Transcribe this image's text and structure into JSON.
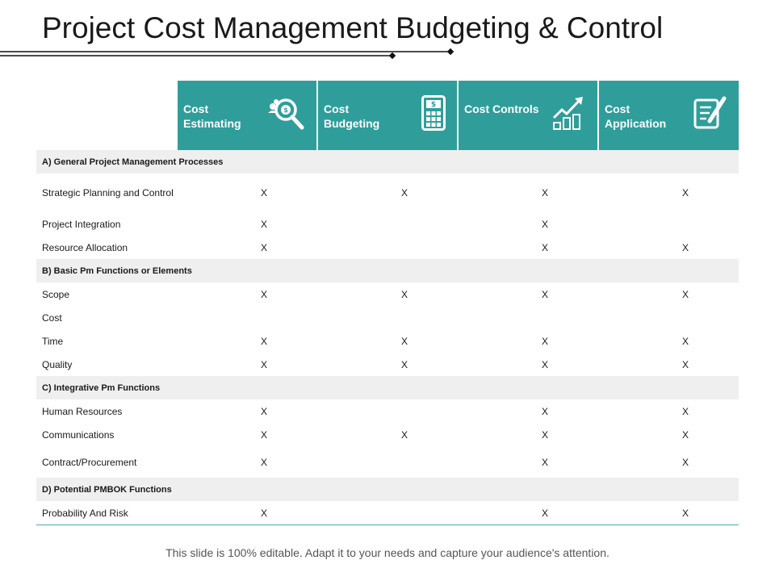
{
  "title": "Project Cost Management Budgeting & Control",
  "colors": {
    "accent": "#2f9e9b",
    "section_bg": "#efefef",
    "rule": "#4aa8a5"
  },
  "columns": [
    {
      "label": "Cost Estimating",
      "icon": "money-search-icon"
    },
    {
      "label": "Cost Budgeting",
      "icon": "calculator-icon"
    },
    {
      "label": "Cost Controls",
      "icon": "growth-chart-icon"
    },
    {
      "label": "Cost Application",
      "icon": "document-edit-icon"
    }
  ],
  "sections": [
    {
      "label": "A) General Project Management Processes",
      "rows": [
        {
          "label": "Strategic Planning and Control",
          "marks": [
            "X",
            "X",
            "X",
            "X"
          ]
        },
        {
          "label": "Project Integration",
          "marks": [
            "X",
            "",
            "X",
            ""
          ]
        },
        {
          "label": "Resource Allocation",
          "marks": [
            "X",
            "",
            "X",
            "X"
          ]
        }
      ]
    },
    {
      "label": "B) Basic Pm Functions  or Elements",
      "rows": [
        {
          "label": "Scope",
          "marks": [
            "X",
            "X",
            "X",
            "X"
          ]
        },
        {
          "label": "Cost",
          "marks": [
            "",
            "",
            "",
            ""
          ]
        },
        {
          "label": "Time",
          "marks": [
            "X",
            "X",
            "X",
            "X"
          ]
        },
        {
          "label": "Quality",
          "marks": [
            "X",
            "X",
            "X",
            "X"
          ]
        }
      ]
    },
    {
      "label": "C) Integrative Pm Functions",
      "rows": [
        {
          "label": "Human Resources",
          "marks": [
            "X",
            "",
            "X",
            "X"
          ]
        },
        {
          "label": "Communications",
          "marks": [
            "X",
            "X",
            "X",
            "X"
          ]
        },
        {
          "label": "Contract/Procurement",
          "marks": [
            "X",
            "",
            "X",
            "X"
          ]
        }
      ]
    },
    {
      "label": "D) Potential PMBOK Functions",
      "rows": [
        {
          "label": "Probability And Risk",
          "marks": [
            "X",
            "",
            "X",
            "X"
          ]
        }
      ]
    }
  ],
  "footer": "This slide is 100% editable. Adapt it to your needs and capture your audience's attention."
}
